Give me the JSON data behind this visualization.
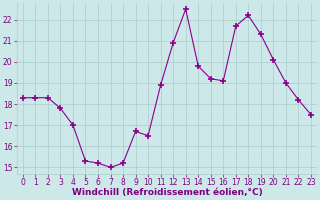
{
  "x": [
    0,
    1,
    2,
    3,
    4,
    5,
    6,
    7,
    8,
    9,
    10,
    11,
    12,
    13,
    14,
    15,
    16,
    17,
    18,
    19,
    20,
    21,
    22,
    23
  ],
  "y": [
    18.3,
    18.3,
    18.3,
    17.8,
    17.0,
    15.3,
    15.2,
    15.0,
    15.2,
    16.7,
    16.5,
    18.9,
    20.9,
    22.5,
    19.8,
    19.2,
    19.1,
    21.7,
    22.2,
    21.3,
    20.1,
    19.0,
    18.2,
    17.5
  ],
  "line_color": "#8B008B",
  "marker": "+",
  "marker_color": "#8B008B",
  "bg_color": "#cce8e8",
  "grid_color": "#aacccc",
  "xlabel": "Windchill (Refroidissement éolien,°C)",
  "ylim_min": 14.7,
  "ylim_max": 22.8,
  "xlim_min": -0.5,
  "xlim_max": 23.5,
  "yticks": [
    15,
    16,
    17,
    18,
    19,
    20,
    21,
    22
  ],
  "xticks": [
    0,
    1,
    2,
    3,
    4,
    5,
    6,
    7,
    8,
    9,
    10,
    11,
    12,
    13,
    14,
    15,
    16,
    17,
    18,
    19,
    20,
    21,
    22,
    23
  ],
  "font_color": "#800080",
  "tick_fontsize": 5.5,
  "xlabel_fontsize": 6.5
}
